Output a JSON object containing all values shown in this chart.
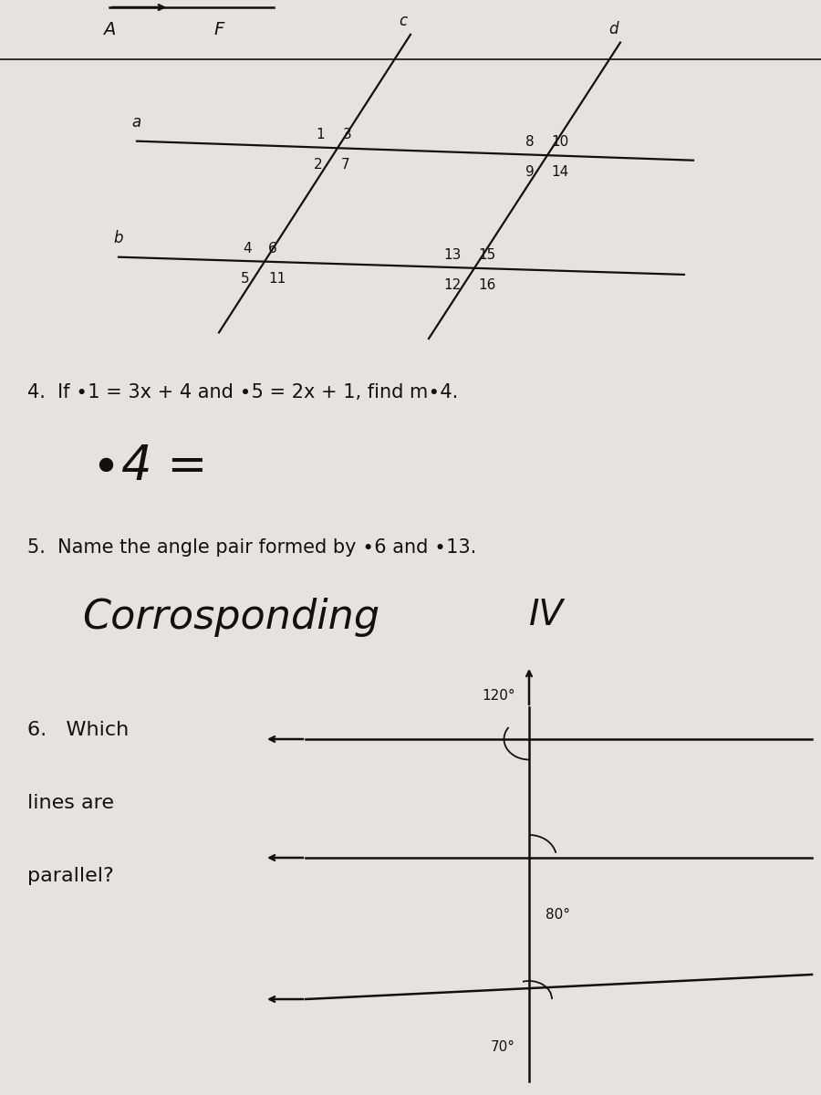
{
  "bg_color": "#e8e2de",
  "text_color": "#111111",
  "handwritten_color": "#111111",
  "top_label_A": "A",
  "top_label_F": "F",
  "diagram_line_a_label": "a",
  "diagram_line_b_label": "b",
  "diagram_line_c_label": "c",
  "diagram_line_d_label": "d",
  "q4_printed": "4.  If ∙1 = 3x + 4 and ∙5 = 2x + 1, find m∙4.",
  "q4_handwritten": "∙4 =",
  "q5_printed": "5.  Name the angle pair formed by ∙6 and ∙13.",
  "q5_handwritten": "Corrosponding",
  "q5_handwritten2": "IV",
  "q6_which": "6.   Which",
  "q6_lines": "lines are",
  "q6_parallel": "parallel?",
  "angle_120": "120°",
  "angle_80": "80°",
  "angle_70": "70°"
}
